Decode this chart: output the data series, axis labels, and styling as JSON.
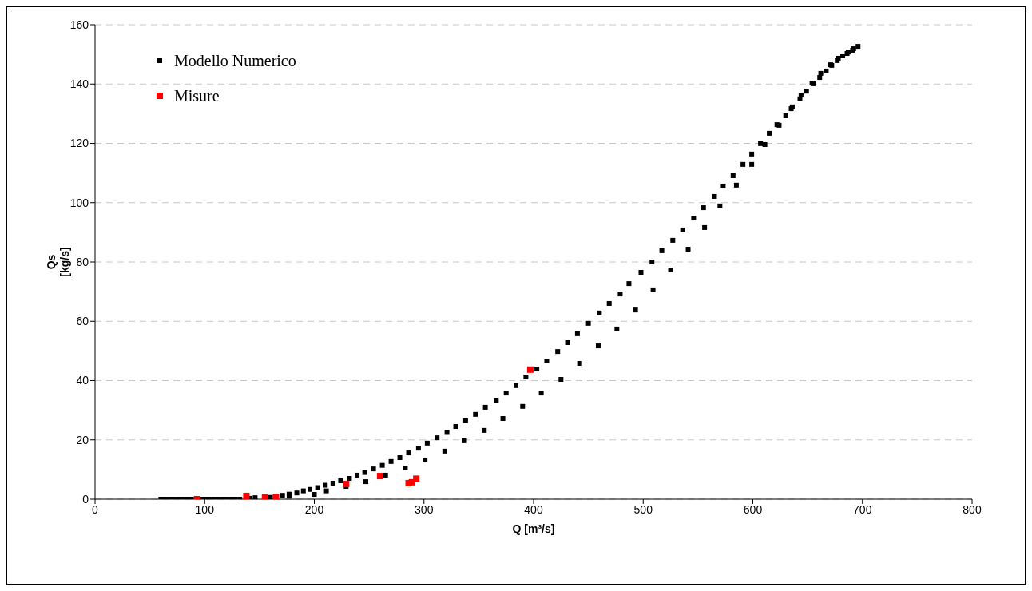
{
  "chart_data": {
    "type": "scatter",
    "xlabel": "Q [m³/s]",
    "ylabel": "Qs\n[kg/s]",
    "xlim": [
      0,
      800
    ],
    "xticks": [
      0,
      100,
      200,
      300,
      400,
      500,
      600,
      700,
      800
    ],
    "ylim": [
      0,
      160
    ],
    "yticks": [
      0,
      20,
      40,
      60,
      80,
      100,
      120,
      140,
      160
    ],
    "grid": "y",
    "legend": "top left",
    "marker": "square",
    "series": [
      {
        "name": "Modello Numerico",
        "color": "#000000",
        "x": [
          60,
          64,
          68,
          72,
          76,
          80,
          84,
          88,
          96,
          100,
          104,
          108,
          112,
          116,
          120,
          124,
          128,
          132,
          141,
          146,
          171,
          177,
          184,
          190,
          196,
          203,
          210,
          217,
          224,
          232,
          239,
          246,
          254,
          262,
          270,
          278,
          286,
          295,
          303,
          312,
          321,
          329,
          338,
          347,
          356,
          366,
          375,
          384,
          393,
          403,
          412,
          422,
          431,
          440,
          450,
          460,
          469,
          479,
          487,
          498,
          508,
          517,
          527,
          536,
          546,
          555,
          565,
          573,
          582,
          591,
          599,
          607,
          615,
          622,
          630,
          636,
          643,
          649,
          655,
          661,
          667,
          672,
          677,
          682,
          687,
          692,
          696,
          691,
          686,
          678,
          671,
          662,
          654,
          644,
          635,
          624,
          611,
          599,
          585,
          570,
          556,
          541,
          525,
          509,
          493,
          476,
          459,
          442,
          425,
          407,
          390,
          372,
          355,
          337,
          319,
          301,
          283,
          265,
          247,
          229,
          211,
          200,
          177,
          160
        ],
        "values": [
          0,
          0,
          0,
          0,
          0,
          0,
          0,
          0,
          0,
          0,
          0,
          0,
          0,
          0,
          0,
          0,
          0,
          0,
          0.3,
          0.5,
          1.3,
          1.7,
          2.1,
          2.8,
          3.3,
          3.9,
          4.7,
          5.4,
          6.2,
          7.0,
          8.1,
          9.0,
          10.2,
          11.4,
          12.7,
          14.0,
          15.6,
          17.2,
          18.9,
          20.7,
          22.5,
          24.5,
          26.4,
          28.6,
          31.0,
          33.4,
          35.8,
          38.3,
          41.2,
          43.9,
          46.6,
          49.8,
          52.8,
          55.8,
          59.3,
          62.8,
          66.0,
          69.2,
          72.7,
          76.5,
          80.0,
          83.8,
          87.3,
          90.8,
          94.8,
          98.3,
          102.1,
          105.6,
          109.1,
          112.9,
          116.4,
          119.9,
          123.4,
          126.3,
          129.3,
          132.3,
          135.0,
          137.6,
          140.1,
          142.2,
          144.4,
          146.3,
          147.9,
          149.5,
          150.8,
          151.9,
          152.7,
          151.4,
          150.3,
          148.7,
          146.5,
          143.6,
          140.3,
          136.3,
          131.7,
          126.1,
          119.6,
          112.9,
          105.9,
          98.9,
          91.6,
          84.3,
          77.3,
          70.6,
          63.8,
          57.4,
          51.7,
          45.8,
          40.4,
          35.8,
          31.3,
          27.2,
          23.2,
          19.7,
          16.2,
          13.2,
          10.5,
          8.1,
          5.9,
          4.3,
          2.8,
          1.6,
          1.0,
          0.6
        ]
      },
      {
        "name": "Misure",
        "color": "#ff0000",
        "x": [
          93,
          138,
          155,
          165,
          229,
          260,
          286,
          289,
          293,
          397
        ],
        "values": [
          0,
          1.1,
          0.6,
          0.7,
          5.1,
          7.8,
          5.4,
          5.7,
          6.9,
          43.7
        ]
      }
    ]
  }
}
